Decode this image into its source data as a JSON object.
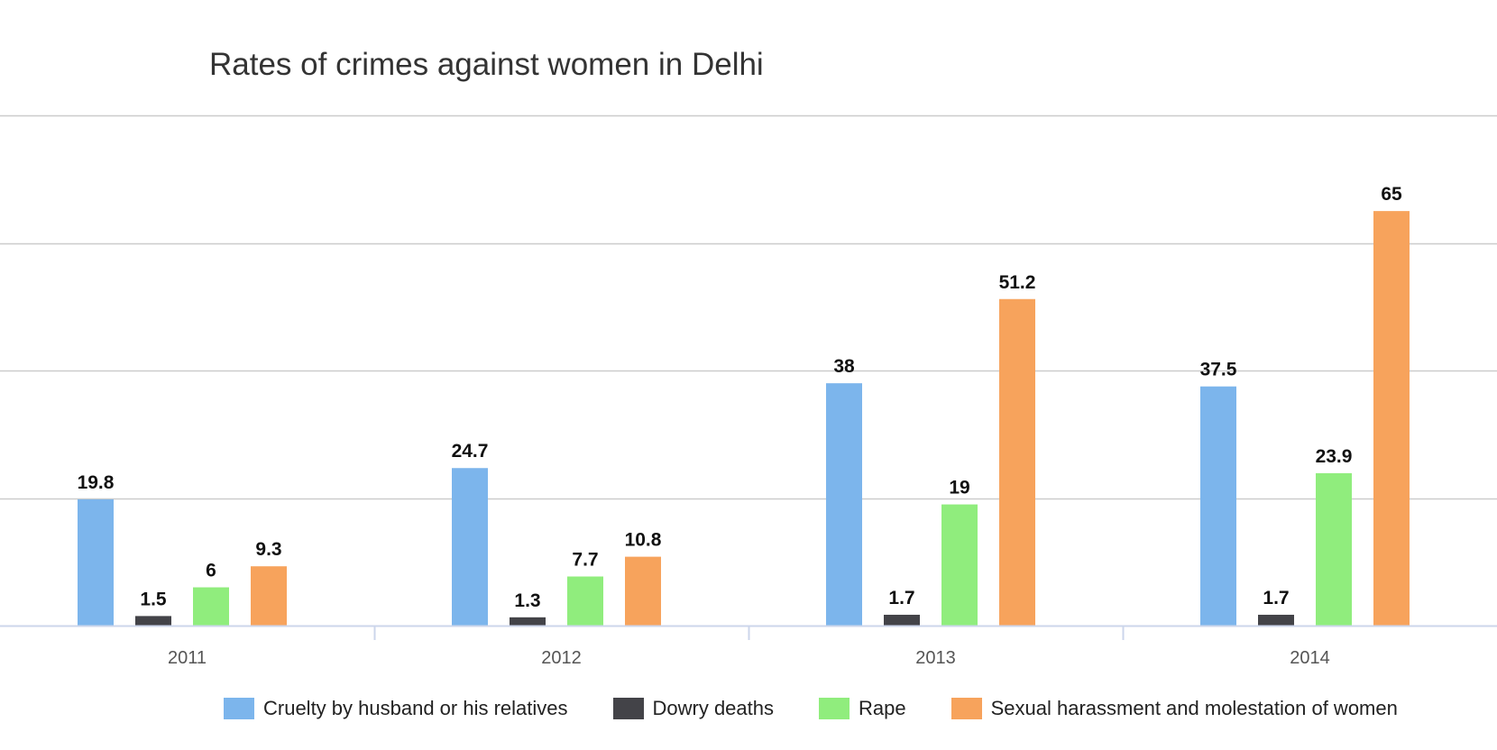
{
  "chart_data": {
    "type": "bar",
    "title": "Rates of crimes against women in Delhi",
    "xlabel": "",
    "ylabel": "",
    "categories": [
      "2011",
      "2012",
      "2013",
      "2014"
    ],
    "series": [
      {
        "name": "Cruelty by husband or his relatives",
        "color": "#7cb5ec",
        "values": [
          19.8,
          24.7,
          38,
          37.5
        ]
      },
      {
        "name": "Dowry deaths",
        "color": "#434348",
        "values": [
          1.5,
          1.3,
          1.7,
          1.7
        ]
      },
      {
        "name": "Rape",
        "color": "#90ed7d",
        "values": [
          6,
          7.7,
          19,
          23.9
        ]
      },
      {
        "name": "Sexual harassment and molestation of women",
        "color": "#f7a35c",
        "values": [
          9.3,
          10.8,
          51.2,
          65
        ]
      }
    ],
    "ylim": [
      0,
      80
    ],
    "y_gridlines": [
      0,
      20,
      40,
      60,
      80
    ],
    "y_tick_labels_shown": false,
    "data_labels": true,
    "grid": true,
    "legend_position": "bottom"
  }
}
